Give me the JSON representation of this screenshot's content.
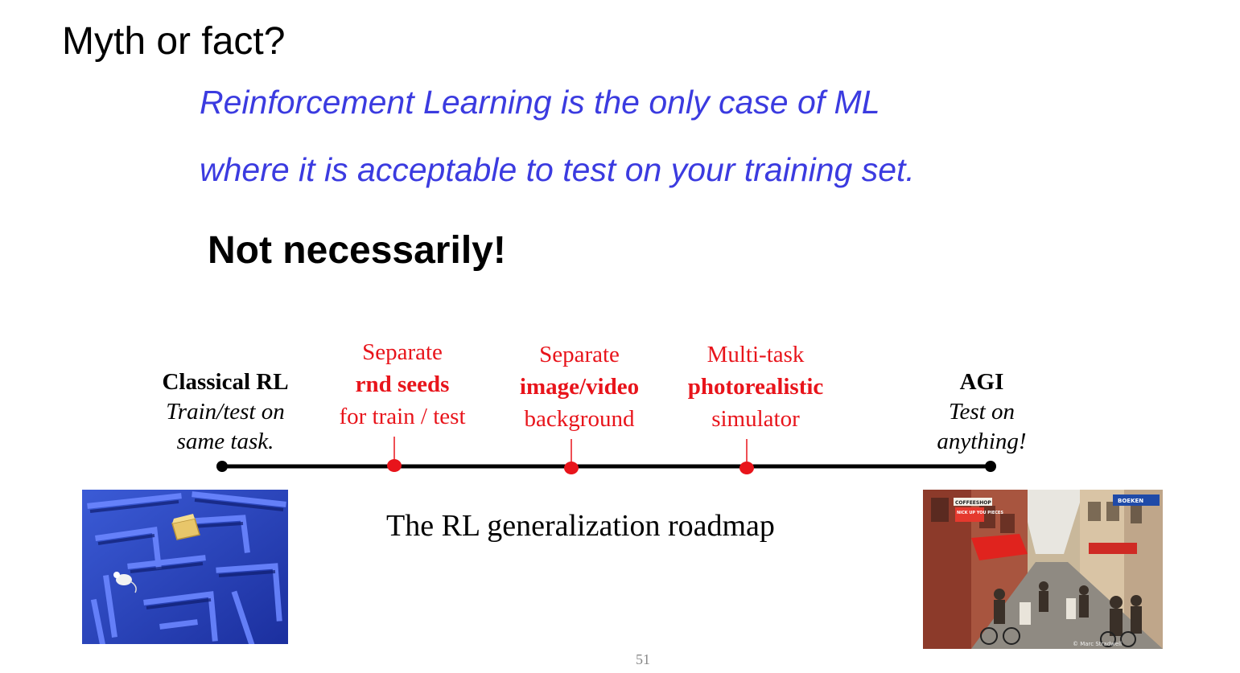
{
  "slide": {
    "title": "Myth or fact?",
    "claim_line1": "Reinforcement Learning is the only case of ML",
    "claim_line2": "where it is acceptable to test on your training set.",
    "answer": "Not necessarily!",
    "caption": "The RL generalization roadmap",
    "page_number": "51"
  },
  "roadmap": {
    "stages": [
      {
        "heading": "Classical RL",
        "line2": "Train/test on",
        "line3": "same task.",
        "color": "#000000"
      },
      {
        "heading": "Separate",
        "line2": "rnd seeds",
        "line3": "for train / test",
        "color": "#e8141b"
      },
      {
        "heading": "Separate",
        "line2": "image/video",
        "line3": "background",
        "color": "#e8141b"
      },
      {
        "heading": "Multi-task",
        "line2": "photorealistic",
        "line3": "simulator",
        "color": "#e8141b"
      },
      {
        "heading": "AGI",
        "line2": "Test on",
        "line3": "anything!",
        "color": "#000000"
      }
    ]
  },
  "images": {
    "left": {
      "icon": "maze-with-mouse-and-cheese-image"
    },
    "right": {
      "icon": "busy-street-scene-image",
      "signs": [
        "COFFEESHOP",
        "NICK UP YOU PIECES",
        "BOEKEN"
      ],
      "watermark": "© Marc Stradwell"
    }
  }
}
